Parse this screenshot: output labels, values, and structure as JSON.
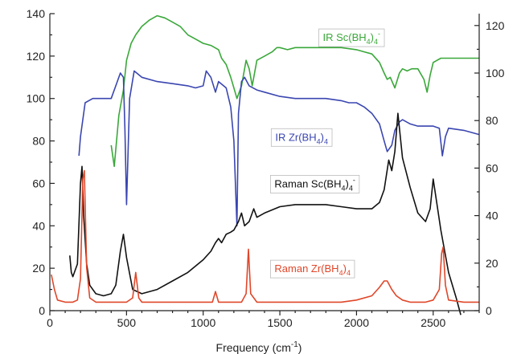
{
  "chart_data": {
    "type": "line",
    "title": "",
    "xlabel": "Frequency (cm",
    "xlabel_sup": "-1",
    "xlabel_close": ")",
    "xlim": [
      0,
      2800
    ],
    "ylim_left": [
      0,
      140
    ],
    "ylim_right": [
      0,
      125
    ],
    "x_ticks": [
      0,
      500,
      1000,
      1500,
      2000,
      2500
    ],
    "y_left_ticks": [
      0,
      20,
      40,
      60,
      80,
      100,
      120,
      140
    ],
    "y_right_ticks": [
      0,
      20,
      40,
      60,
      80,
      100,
      120
    ],
    "grid": false,
    "annotations": [
      {
        "series": "ir_sc",
        "main": "IR Sc(BH",
        "sub": "4",
        "close": ")",
        "sub2": "4",
        "sup": "-",
        "color": "#3aa83a",
        "x": 1780,
        "y": 129
      },
      {
        "series": "ir_zr",
        "main": "IR Zr(BH",
        "sub": "4",
        "close": ")",
        "sub2": "4",
        "sup": "",
        "color": "#3a46b0",
        "x": 1470,
        "y": 82
      },
      {
        "series": "raman_sc",
        "main": "Raman Sc(BH",
        "sub": "4",
        "close": ")",
        "sub2": "4",
        "sup": "-",
        "color": "#111111",
        "x": 1465,
        "y": 60
      },
      {
        "series": "raman_zr",
        "main": "Raman Zr(BH",
        "sub": "4",
        "close": ")",
        "sub2": "4",
        "sup": "",
        "color": "#e0472a",
        "x": 1465,
        "y": 20
      }
    ],
    "series": [
      {
        "id": "ir_sc",
        "axis": "left",
        "color": "#3aa83a",
        "x": [
          400,
          420,
          450,
          480,
          500,
          530,
          560,
          600,
          650,
          700,
          750,
          800,
          850,
          900,
          950,
          1000,
          1050,
          1100,
          1120,
          1150,
          1180,
          1200,
          1220,
          1250,
          1280,
          1300,
          1320,
          1350,
          1400,
          1450,
          1480,
          1500,
          1550,
          1600,
          1700,
          1800,
          1900,
          2000,
          2050,
          2100,
          2150,
          2180,
          2200,
          2220,
          2250,
          2280,
          2300,
          2330,
          2360,
          2400,
          2440,
          2460,
          2480,
          2500,
          2550,
          2600,
          2700,
          2800
        ],
        "y": [
          78,
          68,
          92,
          104,
          118,
          126,
          130,
          134,
          137,
          139,
          138,
          136,
          134,
          130,
          128,
          126,
          125,
          123,
          119,
          116,
          110,
          105,
          100,
          106,
          118,
          114,
          106,
          118,
          120,
          122,
          124,
          124,
          123,
          124,
          124,
          124,
          124,
          123,
          122,
          121,
          117,
          112,
          109,
          110,
          105,
          112,
          114,
          113,
          114,
          114,
          109,
          103,
          111,
          117,
          119,
          119,
          119,
          119
        ]
      },
      {
        "id": "ir_zr",
        "axis": "left",
        "color": "#3a46b0",
        "x": [
          190,
          200,
          230,
          280,
          350,
          400,
          440,
          460,
          480,
          490,
          500,
          520,
          550,
          600,
          700,
          800,
          900,
          950,
          1000,
          1020,
          1050,
          1080,
          1100,
          1150,
          1180,
          1200,
          1220,
          1230,
          1250,
          1270,
          1300,
          1350,
          1400,
          1500,
          1600,
          1700,
          1800,
          1900,
          1950,
          2000,
          2050,
          2100,
          2150,
          2180,
          2200,
          2230,
          2250,
          2280,
          2300,
          2350,
          2400,
          2500,
          2540,
          2560,
          2580,
          2600,
          2700,
          2800
        ],
        "y": [
          73,
          82,
          98,
          100,
          100,
          100,
          108,
          112,
          110,
          85,
          50,
          100,
          113,
          110,
          108,
          107,
          106,
          105,
          106,
          113,
          110,
          103,
          108,
          105,
          96,
          80,
          40,
          93,
          108,
          110,
          106,
          104,
          103,
          101,
          100,
          100,
          100,
          99,
          98,
          98,
          96,
          93,
          88,
          80,
          75,
          78,
          85,
          89,
          90,
          88,
          87,
          87,
          86,
          73,
          82,
          86,
          85,
          83
        ]
      },
      {
        "id": "raman_sc",
        "axis": "left",
        "color": "#111111",
        "x": [
          130,
          140,
          150,
          160,
          180,
          200,
          210,
          220,
          240,
          260,
          300,
          350,
          400,
          430,
          460,
          480,
          500,
          540,
          600,
          700,
          800,
          900,
          1000,
          1050,
          1080,
          1100,
          1120,
          1150,
          1180,
          1200,
          1230,
          1250,
          1270,
          1300,
          1330,
          1350,
          1400,
          1500,
          1600,
          1700,
          1800,
          1900,
          2000,
          2100,
          2150,
          2180,
          2210,
          2230,
          2250,
          2270,
          2300,
          2350,
          2400,
          2450,
          2480,
          2500,
          2550,
          2600,
          2650,
          2680
        ],
        "y": [
          26,
          18,
          16,
          18,
          22,
          60,
          68,
          45,
          22,
          12,
          8,
          7,
          8,
          12,
          28,
          36,
          25,
          10,
          8,
          10,
          14,
          18,
          24,
          28,
          32,
          34,
          32,
          36,
          37,
          38,
          42,
          46,
          40,
          42,
          48,
          44,
          46,
          49,
          50,
          50,
          50,
          49,
          48,
          48,
          51,
          57,
          71,
          66,
          75,
          93,
          72,
          58,
          46,
          42,
          48,
          62,
          38,
          18,
          6,
          -2
        ]
      },
      {
        "id": "raman_zr",
        "axis": "left",
        "color": "#e0472a",
        "x": [
          10,
          30,
          50,
          100,
          150,
          180,
          200,
          215,
          225,
          240,
          260,
          300,
          400,
          500,
          540,
          560,
          580,
          600,
          700,
          800,
          900,
          1000,
          1060,
          1080,
          1100,
          1200,
          1250,
          1280,
          1295,
          1310,
          1350,
          1450,
          1600,
          1800,
          1900,
          2000,
          2100,
          2150,
          2180,
          2200,
          2230,
          2260,
          2300,
          2350,
          2400,
          2450,
          2500,
          2540,
          2555,
          2565,
          2580,
          2600,
          2700,
          2800
        ],
        "y": [
          17,
          10,
          5,
          4,
          4,
          5,
          15,
          62,
          66,
          20,
          6,
          4,
          4,
          4,
          6,
          18,
          6,
          4,
          4,
          4,
          4,
          4,
          4,
          9,
          4,
          4,
          4,
          8,
          29,
          8,
          4,
          4,
          4,
          4,
          4,
          5,
          7,
          11,
          14,
          14,
          10,
          7,
          5,
          4,
          4,
          4,
          5,
          10,
          27,
          30,
          12,
          5,
          4,
          4
        ]
      }
    ]
  }
}
